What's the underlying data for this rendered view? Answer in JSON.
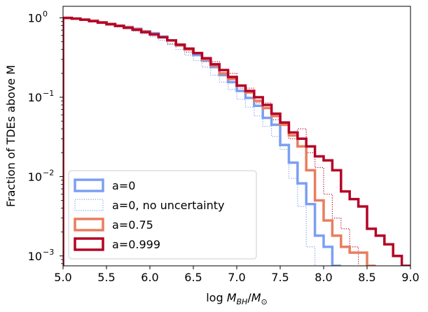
{
  "chart_data": {
    "type": "step",
    "xlabel": "log M_BH/M_⊙",
    "xlabel_parts": {
      "prefix": "log ",
      "m": "M",
      "bh": "BH",
      "slash": "/",
      "m2": "M",
      "sun": "⊙"
    },
    "ylabel": "Fraction of TDEs above M",
    "xlim": [
      5.0,
      9.0
    ],
    "ylim": [
      0.00075,
      1.4
    ],
    "yscale": "log",
    "grid": false,
    "legend_position": "lower-left",
    "xticks": [
      {
        "v": 5.0,
        "label": "5.0"
      },
      {
        "v": 5.5,
        "label": "5.5"
      },
      {
        "v": 6.0,
        "label": "6.0"
      },
      {
        "v": 6.5,
        "label": "6.5"
      },
      {
        "v": 7.0,
        "label": "7.0"
      },
      {
        "v": 7.5,
        "label": "7.5"
      },
      {
        "v": 8.0,
        "label": "8.0"
      },
      {
        "v": 8.5,
        "label": "8.5"
      },
      {
        "v": 9.0,
        "label": "9.0"
      }
    ],
    "yticks": [
      {
        "v": 1,
        "base": "10",
        "exp": "0"
      },
      {
        "v": 0.1,
        "base": "10",
        "exp": "−1"
      },
      {
        "v": 0.01,
        "base": "10",
        "exp": "−2"
      },
      {
        "v": 0.001,
        "base": "10",
        "exp": "−3"
      }
    ],
    "series": [
      {
        "name": "a=0",
        "color": "#7b9ff2",
        "style": "solid",
        "width": 3.5,
        "x": [
          5.0,
          5.1,
          5.2,
          5.3,
          5.4,
          5.5,
          5.6,
          5.7,
          5.8,
          5.9,
          6.0,
          6.1,
          6.2,
          6.3,
          6.4,
          6.5,
          6.6,
          6.7,
          6.8,
          6.9,
          7.0,
          7.1,
          7.2,
          7.3,
          7.4,
          7.5,
          7.6,
          7.7,
          7.8,
          7.9,
          8.0,
          8.1
        ],
        "y": [
          1.0,
          0.98,
          0.95,
          0.92,
          0.88,
          0.84,
          0.8,
          0.77,
          0.73,
          0.68,
          0.64,
          0.58,
          0.52,
          0.45,
          0.4,
          0.34,
          0.29,
          0.24,
          0.19,
          0.155,
          0.12,
          0.098,
          0.078,
          0.055,
          0.045,
          0.025,
          0.015,
          0.0082,
          0.0045,
          0.0018,
          0.0013,
          0.00075
        ]
      },
      {
        "name": "a=0, no uncertainty",
        "color": "#7b9ff2",
        "style": "dotted",
        "width": 1.2,
        "x": [
          5.0,
          5.1,
          5.2,
          5.3,
          5.4,
          5.5,
          5.6,
          5.7,
          5.8,
          5.9,
          6.0,
          6.1,
          6.2,
          6.3,
          6.4,
          6.5,
          6.6,
          6.7,
          6.8,
          6.9,
          7.0,
          7.1,
          7.2,
          7.3,
          7.4,
          7.5,
          7.6,
          7.7,
          7.8,
          7.9
        ],
        "y": [
          1.0,
          0.97,
          0.94,
          0.9,
          0.86,
          0.82,
          0.77,
          0.73,
          0.68,
          0.63,
          0.58,
          0.52,
          0.46,
          0.4,
          0.34,
          0.29,
          0.24,
          0.19,
          0.155,
          0.125,
          0.094,
          0.075,
          0.058,
          0.043,
          0.032,
          0.022,
          0.0095,
          0.0042,
          0.0013,
          0.00075
        ]
      },
      {
        "name": "a=0.75",
        "color": "#e87d5f",
        "style": "solid",
        "width": 3.5,
        "x": [
          5.0,
          5.1,
          5.2,
          5.3,
          5.4,
          5.5,
          5.6,
          5.7,
          5.8,
          5.9,
          6.0,
          6.1,
          6.2,
          6.3,
          6.4,
          6.5,
          6.6,
          6.7,
          6.8,
          6.9,
          7.0,
          7.1,
          7.2,
          7.3,
          7.4,
          7.5,
          7.6,
          7.7,
          7.8,
          7.9,
          8.0,
          8.1,
          8.2,
          8.3,
          8.4,
          8.5
        ],
        "y": [
          1.0,
          0.98,
          0.95,
          0.92,
          0.88,
          0.84,
          0.8,
          0.76,
          0.72,
          0.67,
          0.62,
          0.57,
          0.52,
          0.45,
          0.4,
          0.36,
          0.3,
          0.25,
          0.2,
          0.17,
          0.14,
          0.115,
          0.09,
          0.073,
          0.058,
          0.045,
          0.033,
          0.024,
          0.012,
          0.005,
          0.0028,
          0.0018,
          0.0013,
          0.0011,
          0.0011,
          0.00075
        ]
      },
      {
        "name": "a=0.999",
        "color": "#b40426",
        "style": "solid",
        "width": 3.5,
        "x": [
          5.0,
          5.1,
          5.2,
          5.3,
          5.4,
          5.5,
          5.6,
          5.7,
          5.8,
          5.9,
          6.0,
          6.1,
          6.2,
          6.3,
          6.4,
          6.5,
          6.6,
          6.7,
          6.8,
          6.9,
          7.0,
          7.1,
          7.2,
          7.3,
          7.4,
          7.5,
          7.6,
          7.7,
          7.8,
          7.9,
          8.0,
          8.1,
          8.2,
          8.3,
          8.4,
          8.5,
          8.6,
          8.7,
          8.8,
          8.9
        ],
        "y": [
          1.0,
          0.98,
          0.95,
          0.91,
          0.87,
          0.83,
          0.79,
          0.75,
          0.71,
          0.66,
          0.62,
          0.57,
          0.52,
          0.46,
          0.41,
          0.36,
          0.31,
          0.26,
          0.22,
          0.18,
          0.14,
          0.12,
          0.1,
          0.08,
          0.062,
          0.048,
          0.036,
          0.03,
          0.024,
          0.018,
          0.016,
          0.012,
          0.0065,
          0.0052,
          0.0042,
          0.0022,
          0.0018,
          0.0014,
          0.001,
          0.00075
        ]
      },
      {
        "name": "",
        "color": "#b40426",
        "style": "dotted",
        "width": 1.2,
        "x": [
          5.0,
          5.2,
          5.4,
          5.6,
          5.8,
          6.0,
          6.2,
          6.4,
          6.6,
          6.8,
          7.0,
          7.2,
          7.4,
          7.5,
          7.6,
          7.7,
          7.8,
          7.9,
          8.0,
          8.1,
          8.2,
          8.3,
          8.4
        ],
        "y": [
          1.0,
          0.94,
          0.86,
          0.77,
          0.68,
          0.58,
          0.47,
          0.37,
          0.28,
          0.2,
          0.13,
          0.085,
          0.052,
          0.045,
          0.03,
          0.04,
          0.02,
          0.013,
          0.006,
          0.003,
          0.0022,
          0.0013,
          0.00075
        ]
      }
    ],
    "legend": [
      0,
      1,
      2,
      3
    ]
  }
}
